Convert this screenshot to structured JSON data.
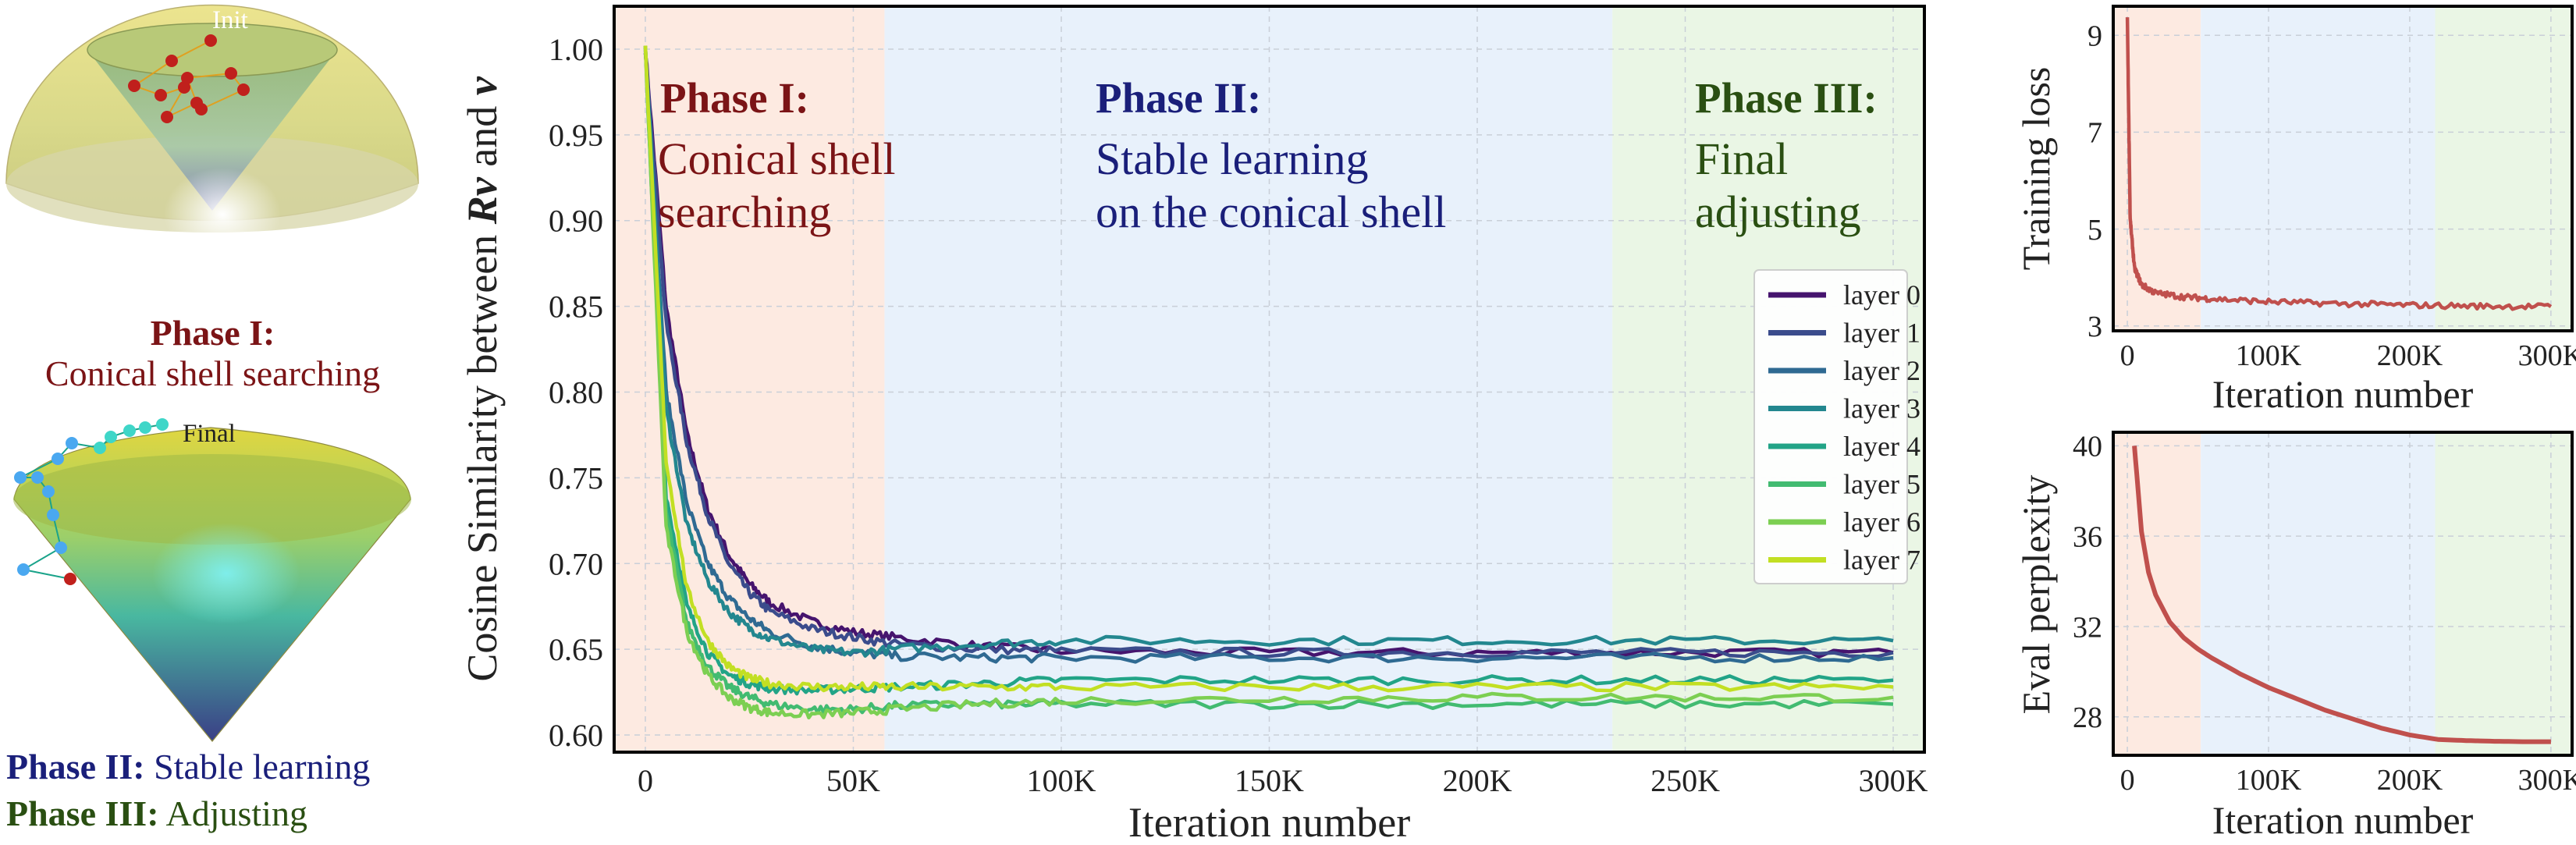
{
  "colors": {
    "phase1_bg": "#fde6dc",
    "phase2_bg": "#e4eefa",
    "phase3_bg": "#e6f5e0",
    "phase1_text": "#7b1416",
    "phase2_text": "#1a1f7a",
    "phase3_text": "#2a4f12",
    "curve": "#c0504d",
    "layer_colors": [
      "#46146e",
      "#3b4c8c",
      "#2f6a92",
      "#23878f",
      "#22a487",
      "#42bb71",
      "#7ccf52",
      "#c2df23"
    ]
  },
  "left_panel": {
    "init_label": "Init",
    "final_label": "Final",
    "phase1_title": "Phase I:",
    "phase1_desc": "Conical shell searching",
    "phase2_title": "Phase II:",
    "phase2_desc": "Stable learning",
    "phase3_title": "Phase III:",
    "phase3_desc": "Adjusting"
  },
  "main_chart": {
    "phase1": {
      "title": "Phase I:",
      "line1": "Conical shell",
      "line2": "searching"
    },
    "phase2": {
      "title": "Phase II:",
      "line1": "Stable learning",
      "line2": "on the conical shell"
    },
    "phase3": {
      "title": "Phase III:",
      "line1": "Final",
      "line2": "adjusting"
    }
  },
  "chart_data": [
    {
      "type": "line",
      "title": "",
      "xlabel": "Iteration number",
      "ylabel": "Cosine Similarity between Rv and v",
      "xlim": [
        -7500,
        307500
      ],
      "ylim": [
        0.59,
        1.025
      ],
      "grid": true,
      "legend_position": "right",
      "x_ticks": [
        0,
        50000,
        100000,
        150000,
        200000,
        250000,
        300000
      ],
      "x_tick_labels": [
        "0",
        "50K",
        "100K",
        "150K",
        "200K",
        "250K",
        "300K"
      ],
      "y_ticks": [
        0.6,
        0.65,
        0.7,
        0.75,
        0.8,
        0.85,
        0.9,
        0.95,
        1.0
      ],
      "y_tick_labels": [
        "0.60",
        "0.65",
        "0.70",
        "0.75",
        "0.80",
        "0.85",
        "0.90",
        "0.95",
        "1.00"
      ],
      "phase_bands": [
        [
          -7500,
          57500
        ],
        [
          57500,
          232500
        ],
        [
          232500,
          307500
        ]
      ],
      "x": [
        0,
        5000,
        10000,
        15000,
        20000,
        25000,
        30000,
        40000,
        50000,
        60000,
        80000,
        100000,
        150000,
        200000,
        250000,
        300000
      ],
      "series": [
        {
          "name": "layer 0",
          "values": [
            1.0,
            0.85,
            0.775,
            0.732,
            0.705,
            0.688,
            0.677,
            0.666,
            0.66,
            0.657,
            0.652,
            0.649,
            0.648,
            0.648,
            0.648,
            0.648
          ]
        },
        {
          "name": "layer 1",
          "values": [
            1.0,
            0.84,
            0.77,
            0.728,
            0.7,
            0.683,
            0.672,
            0.662,
            0.657,
            0.653,
            0.65,
            0.649,
            0.648,
            0.648,
            0.648,
            0.648
          ]
        },
        {
          "name": "layer 2",
          "values": [
            1.0,
            0.8,
            0.735,
            0.7,
            0.68,
            0.668,
            0.66,
            0.652,
            0.648,
            0.646,
            0.645,
            0.645,
            0.645,
            0.645,
            0.645,
            0.645
          ]
        },
        {
          "name": "layer 3",
          "values": [
            1.0,
            0.79,
            0.722,
            0.69,
            0.672,
            0.662,
            0.656,
            0.65,
            0.648,
            0.65,
            0.653,
            0.655,
            0.655,
            0.655,
            0.655,
            0.655
          ]
        },
        {
          "name": "layer 4",
          "values": [
            1.0,
            0.74,
            0.675,
            0.648,
            0.635,
            0.63,
            0.627,
            0.626,
            0.627,
            0.628,
            0.63,
            0.632,
            0.632,
            0.632,
            0.632,
            0.632
          ]
        },
        {
          "name": "layer 5",
          "values": [
            1.0,
            0.73,
            0.665,
            0.64,
            0.628,
            0.622,
            0.618,
            0.615,
            0.615,
            0.617,
            0.618,
            0.618,
            0.618,
            0.618,
            0.618,
            0.618
          ]
        },
        {
          "name": "layer 6",
          "values": [
            1.0,
            0.72,
            0.66,
            0.635,
            0.622,
            0.616,
            0.613,
            0.612,
            0.613,
            0.615,
            0.618,
            0.62,
            0.621,
            0.622,
            0.622,
            0.622
          ]
        },
        {
          "name": "layer 7",
          "values": [
            1.0,
            0.76,
            0.685,
            0.655,
            0.64,
            0.633,
            0.63,
            0.628,
            0.628,
            0.628,
            0.628,
            0.628,
            0.628,
            0.628,
            0.628,
            0.628
          ]
        }
      ]
    },
    {
      "type": "line",
      "title": "",
      "xlabel": "Iteration number",
      "ylabel": "Training loss",
      "xlim": [
        -10000,
        315000
      ],
      "ylim": [
        2.9,
        9.6
      ],
      "grid": true,
      "x_ticks": [
        0,
        100000,
        200000,
        300000
      ],
      "x_tick_labels": [
        "0",
        "100K",
        "200K",
        "300K"
      ],
      "y_ticks": [
        3,
        5,
        7,
        9
      ],
      "y_tick_labels": [
        "3",
        "5",
        "7",
        "9"
      ],
      "phase_bands": [
        [
          -10000,
          52000
        ],
        [
          52000,
          218000
        ],
        [
          218000,
          315000
        ]
      ],
      "x": [
        0,
        2000,
        5000,
        10000,
        20000,
        40000,
        60000,
        100000,
        150000,
        200000,
        250000,
        300000
      ],
      "series": [
        {
          "values": [
            9.35,
            5.2,
            4.2,
            3.85,
            3.68,
            3.6,
            3.56,
            3.5,
            3.46,
            3.43,
            3.41,
            3.4
          ]
        }
      ]
    },
    {
      "type": "line",
      "title": "",
      "xlabel": "Iteration number",
      "ylabel": "Eval perplexity",
      "xlim": [
        -10000,
        315000
      ],
      "ylim": [
        26.3,
        40.6
      ],
      "grid": true,
      "x_ticks": [
        0,
        100000,
        200000,
        300000
      ],
      "x_tick_labels": [
        "0",
        "100K",
        "200K",
        "300K"
      ],
      "y_ticks": [
        28,
        32,
        36,
        40
      ],
      "y_tick_labels": [
        "28",
        "32",
        "36",
        "40"
      ],
      "phase_bands": [
        [
          -10000,
          52000
        ],
        [
          52000,
          218000
        ],
        [
          218000,
          315000
        ]
      ],
      "x": [
        5000,
        10000,
        15000,
        20000,
        30000,
        40000,
        50000,
        60000,
        80000,
        100000,
        120000,
        140000,
        160000,
        180000,
        200000,
        220000,
        240000,
        260000,
        280000,
        300000
      ],
      "series": [
        {
          "values": [
            40.0,
            36.2,
            34.4,
            33.4,
            32.2,
            31.5,
            31.0,
            30.6,
            29.9,
            29.3,
            28.8,
            28.3,
            27.9,
            27.5,
            27.2,
            27.0,
            26.95,
            26.92,
            26.9,
            26.9
          ]
        }
      ]
    }
  ]
}
